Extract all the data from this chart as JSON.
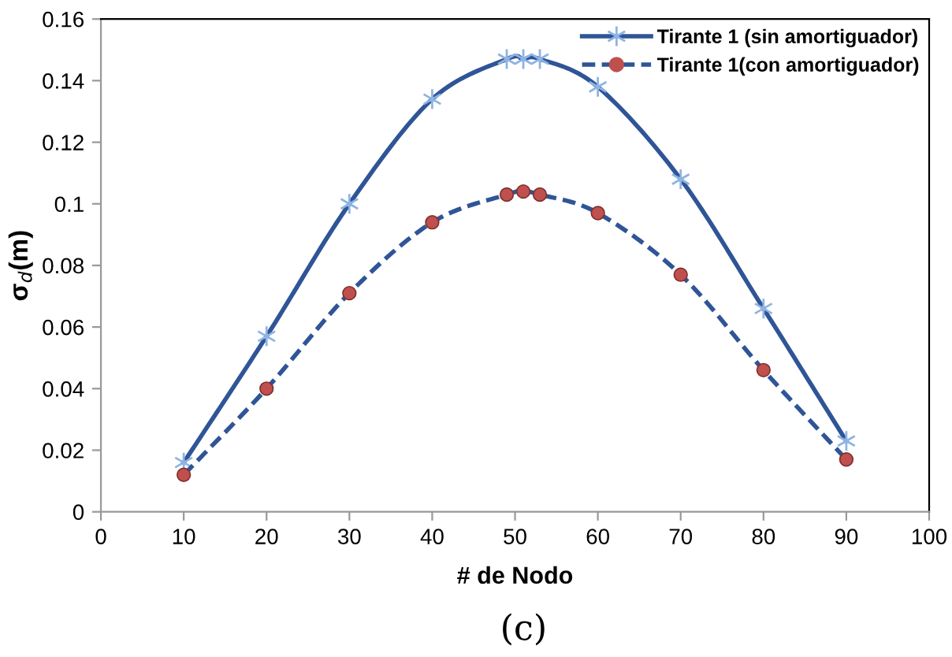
{
  "chart_data": {
    "type": "line",
    "xlabel": "# de Nodo",
    "ylabel": "σ$_{d}$(m)",
    "x": [
      10,
      20,
      30,
      40,
      49,
      51,
      53,
      60,
      70,
      80,
      90
    ],
    "series": [
      {
        "name": "Tirante 1 (sin amortiguador)",
        "color": "#2f5597",
        "marker": "cross",
        "line_style": "solid",
        "values": [
          0.016,
          0.057,
          0.1,
          0.134,
          0.147,
          0.147,
          0.147,
          0.138,
          0.108,
          0.066,
          0.023
        ]
      },
      {
        "name": "Tirante 1(con amortiguador)",
        "color": "#2f5597",
        "marker": "circle",
        "line_style": "dashed",
        "values": [
          0.012,
          0.04,
          0.071,
          0.094,
          0.103,
          0.104,
          0.103,
          0.097,
          0.077,
          0.046,
          0.017
        ]
      }
    ],
    "xlim": [
      0,
      100
    ],
    "xticks": [
      0,
      10,
      20,
      30,
      40,
      50,
      60,
      70,
      80,
      90,
      100
    ],
    "ylim": [
      0,
      0.16
    ],
    "yticks": [
      0,
      0.02,
      0.04,
      0.06,
      0.08,
      {
        "value": 0.1,
        "label": "0.1"
      },
      0.12,
      0.14,
      0.16
    ],
    "grid": false,
    "legend": "top right",
    "annotations": [
      "(c)"
    ]
  }
}
